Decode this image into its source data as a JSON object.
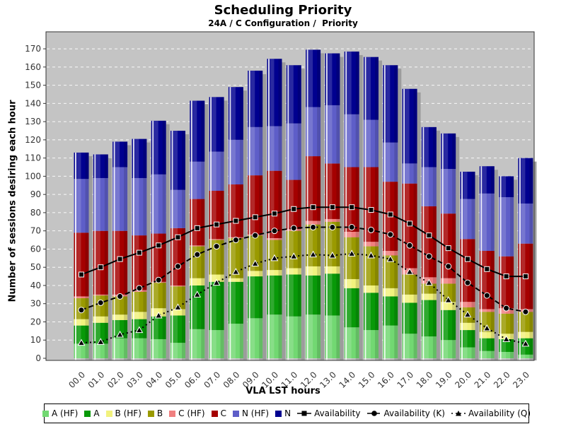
{
  "title": "Scheduling Priority",
  "subtitle": "24A / C Configuration /  Priority",
  "axes": {
    "xlabel": "VLA LST hours",
    "ylabel": "Number of sessions desiring each hour"
  },
  "chart_data": {
    "type": "bar",
    "stacked": true,
    "title": "Scheduling Priority",
    "subtitle": "24A / C Configuration /  Priority",
    "xlabel": "VLA LST hours",
    "ylabel": "Number of sessions desiring each hour",
    "ylim": [
      0,
      179
    ],
    "ytick_max": 170,
    "ytick_step": 10,
    "grid": {
      "color": "#FFFFFF",
      "style": "dashed"
    },
    "plot_bg": "#C4C4C4",
    "shadow_color": "#9C9C9C",
    "legend_position": "bottom",
    "categories": [
      "00.0",
      "01.0",
      "02.0",
      "03.0",
      "04.0",
      "05.0",
      "06.0",
      "07.0",
      "08.0",
      "09.0",
      "10.0",
      "11.0",
      "12.0",
      "13.0",
      "14.0",
      "15.0",
      "16.0",
      "17.0",
      "18.0",
      "19.0",
      "20.0",
      "21.0",
      "22.0",
      "23.0"
    ],
    "series": [
      {
        "name": "A (HF)",
        "color": "#72D872",
        "values": [
          8,
          8,
          11,
          11,
          10.5,
          8.5,
          16,
          15.5,
          19,
          22,
          24,
          23,
          24,
          23.5,
          17,
          15.5,
          18,
          13.5,
          12,
          10,
          6,
          4,
          3.5,
          2
        ]
      },
      {
        "name": "A",
        "color": "#089908",
        "values": [
          10,
          11.5,
          10,
          10.5,
          12.5,
          15,
          24,
          26.5,
          23,
          23,
          21.5,
          23,
          21.5,
          23,
          21.5,
          20.5,
          16,
          17,
          20,
          16.5,
          9.5,
          7,
          7,
          9
        ]
      },
      {
        "name": "B (HF)",
        "color": "#F2F27E",
        "values": [
          3.5,
          3.5,
          3,
          4,
          4.5,
          3.5,
          4,
          4,
          2,
          3,
          3,
          3.5,
          5,
          4,
          5,
          4,
          4.5,
          4.5,
          3.5,
          4.5,
          4,
          3.5,
          3,
          3.5
        ]
      },
      {
        "name": "B",
        "color": "#9A9A00",
        "values": [
          11.5,
          11.5,
          10,
          11,
          14,
          12.5,
          17.5,
          19,
          22,
          19.5,
          16.5,
          20.5,
          23,
          24.5,
          23,
          21.5,
          18,
          11,
          5.5,
          10,
          8.5,
          11,
          11,
          11
        ]
      },
      {
        "name": "C (HF)",
        "color": "#F08080",
        "values": [
          1,
          0.5,
          1,
          1,
          0.5,
          0.5,
          0.5,
          0.5,
          0.5,
          0.5,
          1,
          1,
          2,
          1.5,
          3,
          2.5,
          2.5,
          3.5,
          3.5,
          3,
          3,
          1.5,
          3,
          1.5
        ]
      },
      {
        "name": "C",
        "color": "#A50000",
        "values": [
          35,
          35,
          35,
          30,
          26.5,
          31.5,
          25.5,
          26.5,
          29,
          32.5,
          37,
          27,
          35.5,
          30.5,
          35.5,
          41,
          38,
          46.5,
          39,
          35.5,
          34.5,
          32,
          28.5,
          36
        ]
      },
      {
        "name": "N (HF)",
        "color": "#5E5EC8",
        "values": [
          29.5,
          29,
          35,
          31.5,
          32.5,
          21,
          20.5,
          21.5,
          24.5,
          26.5,
          24.5,
          31,
          27,
          32,
          29,
          26,
          21.5,
          11,
          21.5,
          24.5,
          22,
          31.5,
          32.5,
          22
        ]
      },
      {
        "name": "N",
        "color": "#00008F",
        "values": [
          14.5,
          13,
          14,
          21.5,
          29.5,
          32.5,
          33.5,
          30,
          29,
          31,
          37,
          32,
          31.5,
          28.5,
          34.5,
          34.5,
          42.5,
          41,
          22,
          19.5,
          15,
          15,
          11.5,
          25
        ]
      }
    ],
    "line_series": [
      {
        "name": "Availability",
        "marker": "square",
        "line_style": "solid",
        "color": "#000000",
        "values": [
          46,
          50,
          54.5,
          58,
          62,
          66.5,
          71.5,
          73.5,
          75.5,
          77.5,
          79.5,
          82,
          83,
          83,
          83,
          81.5,
          79,
          74,
          67.5,
          60.5,
          54.5,
          49,
          45,
          45
        ]
      },
      {
        "name": "Availability (K)",
        "marker": "circle",
        "line_style": "dashed",
        "color": "#000000",
        "values": [
          26.5,
          30.5,
          34,
          38.5,
          43,
          50.5,
          57,
          61.5,
          65,
          67.5,
          70,
          71.5,
          72,
          72,
          72,
          70.5,
          68,
          62,
          56,
          50.5,
          41.5,
          34.5,
          27.5,
          25.5
        ]
      },
      {
        "name": "Availability (Q)",
        "marker": "triangle",
        "line_style": "dotted",
        "color": "#000000",
        "values": [
          8.5,
          9,
          13,
          15.5,
          23.5,
          28,
          35,
          41.5,
          47.5,
          52,
          55,
          56,
          57,
          56.5,
          57.5,
          56.5,
          54.5,
          47.5,
          41.5,
          32,
          24,
          16.5,
          10.5,
          8
        ]
      }
    ]
  },
  "legend": {
    "items": [
      {
        "label": "A (HF)",
        "type": "swatch",
        "color": "#72D872"
      },
      {
        "label": "A",
        "type": "swatch",
        "color": "#089908"
      },
      {
        "label": "B (HF)",
        "type": "swatch",
        "color": "#F2F27E"
      },
      {
        "label": "B",
        "type": "swatch",
        "color": "#9A9A00"
      },
      {
        "label": "C (HF)",
        "type": "swatch",
        "color": "#F08080"
      },
      {
        "label": "C",
        "type": "swatch",
        "color": "#A50000"
      },
      {
        "label": "N (HF)",
        "type": "swatch",
        "color": "#5E5EC8"
      },
      {
        "label": "N",
        "type": "swatch",
        "color": "#00008F"
      },
      {
        "label": "Availability",
        "type": "marker",
        "marker": "square",
        "line_style": "solid"
      },
      {
        "label": "Availability (K)",
        "type": "marker",
        "marker": "circle",
        "line_style": "dashed"
      },
      {
        "label": "Availability (Q)",
        "type": "marker",
        "marker": "triangle",
        "line_style": "dotted"
      }
    ]
  }
}
